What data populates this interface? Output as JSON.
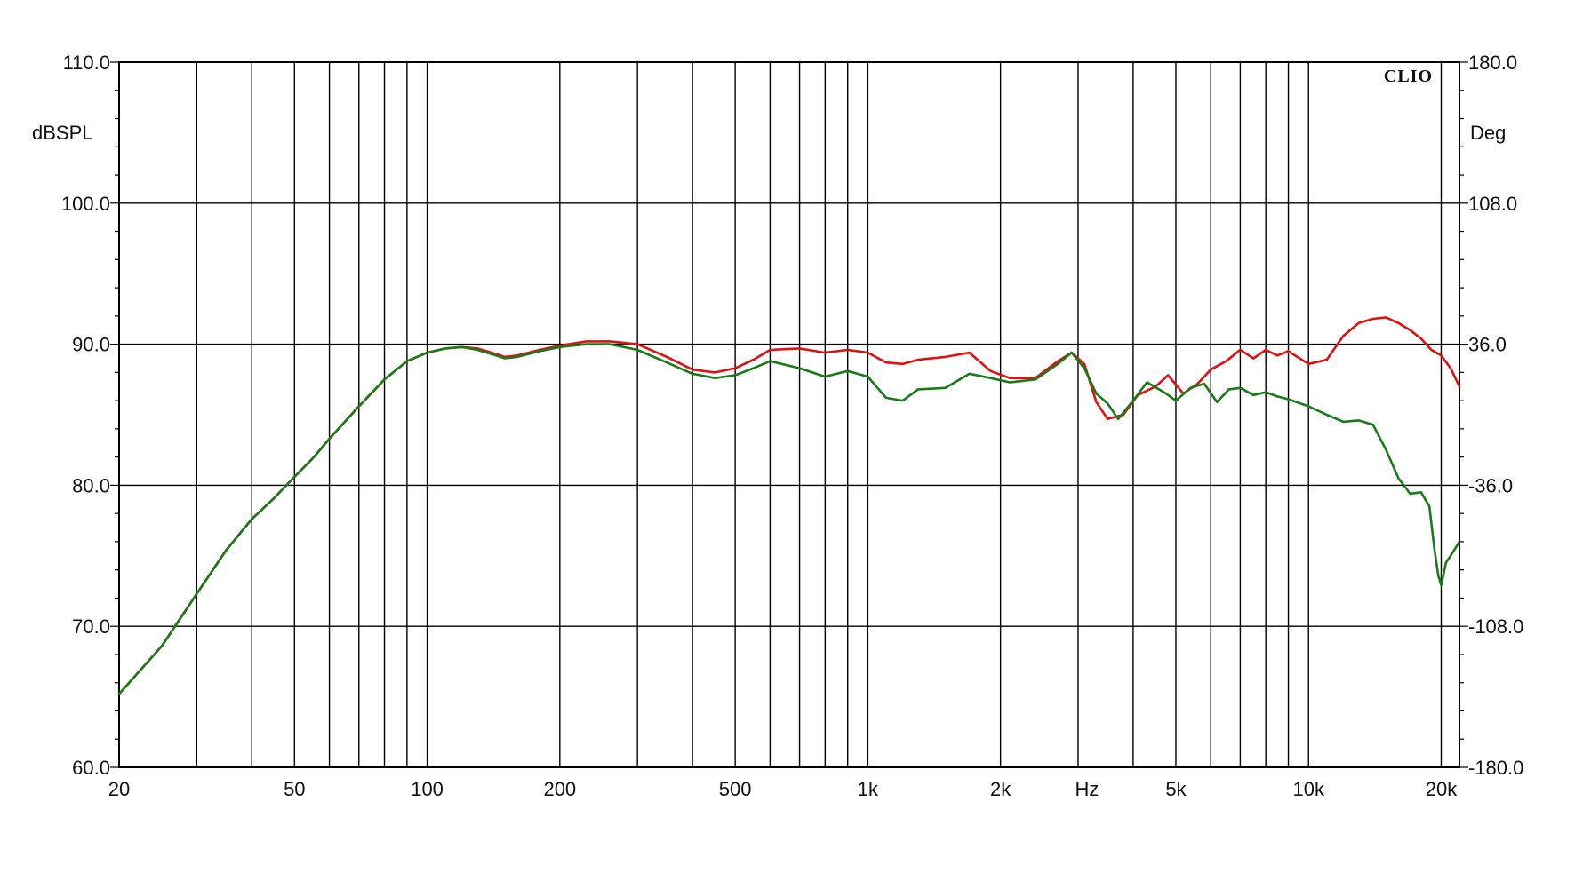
{
  "chart_data": {
    "type": "line",
    "brand": "CLIO",
    "x_scale": "log",
    "xlim": [
      20,
      22000
    ],
    "left_axis": {
      "unit_label": "dBSPL",
      "ylim": [
        60,
        110
      ],
      "ticks": [
        {
          "value": 110,
          "label": "110.0"
        },
        {
          "value": 100,
          "label": "100.0"
        },
        {
          "value": 90,
          "label": "90.0"
        },
        {
          "value": 80,
          "label": "80.0"
        },
        {
          "value": 70,
          "label": "70.0"
        },
        {
          "value": 60,
          "label": "60.0"
        }
      ]
    },
    "right_axis": {
      "unit_label": "Deg",
      "ylim": [
        -180,
        180
      ],
      "ticks": [
        {
          "value": 180,
          "label": "180.0"
        },
        {
          "value": 108,
          "label": "108.0"
        },
        {
          "value": 36,
          "label": "36.0"
        },
        {
          "value": -36,
          "label": "-36.0"
        },
        {
          "value": -108,
          "label": "-108.0"
        },
        {
          "value": -180,
          "label": "-180.0"
        }
      ]
    },
    "x_unit_label": "Hz",
    "x_tick_labels": [
      {
        "value": 20,
        "label": "20"
      },
      {
        "value": 50,
        "label": "50"
      },
      {
        "value": 100,
        "label": "100"
      },
      {
        "value": 200,
        "label": "200"
      },
      {
        "value": 500,
        "label": "500"
      },
      {
        "value": 1000,
        "label": "1k"
      },
      {
        "value": 2000,
        "label": "2k"
      },
      {
        "value": 5000,
        "label": "5k"
      },
      {
        "value": 10000,
        "label": "10k"
      },
      {
        "value": 20000,
        "label": "20k"
      }
    ],
    "x_gridlines": [
      20,
      30,
      40,
      50,
      60,
      70,
      80,
      90,
      100,
      200,
      300,
      400,
      500,
      600,
      700,
      800,
      900,
      1000,
      2000,
      3000,
      4000,
      5000,
      6000,
      7000,
      8000,
      9000,
      10000,
      20000
    ],
    "y_gridlines": [
      60,
      70,
      80,
      90,
      100,
      110
    ],
    "grid": true,
    "series": [
      {
        "color": "#dd1111",
        "points": [
          [
            20,
            65.2
          ],
          [
            25,
            68.6
          ],
          [
            30,
            72.3
          ],
          [
            35,
            75.4
          ],
          [
            40,
            77.6
          ],
          [
            45,
            79.1
          ],
          [
            50,
            80.6
          ],
          [
            55,
            81.9
          ],
          [
            60,
            83.3
          ],
          [
            70,
            85.6
          ],
          [
            80,
            87.5
          ],
          [
            90,
            88.8
          ],
          [
            100,
            89.4
          ],
          [
            110,
            89.7
          ],
          [
            120,
            89.8
          ],
          [
            130,
            89.7
          ],
          [
            140,
            89.4
          ],
          [
            150,
            89.1
          ],
          [
            160,
            89.2
          ],
          [
            180,
            89.6
          ],
          [
            200,
            89.9
          ],
          [
            230,
            90.2
          ],
          [
            260,
            90.2
          ],
          [
            300,
            90.0
          ],
          [
            350,
            89.1
          ],
          [
            400,
            88.2
          ],
          [
            450,
            88.0
          ],
          [
            500,
            88.3
          ],
          [
            550,
            88.9
          ],
          [
            600,
            89.6
          ],
          [
            700,
            89.7
          ],
          [
            800,
            89.4
          ],
          [
            900,
            89.6
          ],
          [
            1000,
            89.4
          ],
          [
            1100,
            88.7
          ],
          [
            1200,
            88.6
          ],
          [
            1300,
            88.9
          ],
          [
            1500,
            89.1
          ],
          [
            1700,
            89.4
          ],
          [
            1900,
            88.1
          ],
          [
            2100,
            87.6
          ],
          [
            2400,
            87.6
          ],
          [
            2700,
            88.8
          ],
          [
            2900,
            89.4
          ],
          [
            3100,
            88.6
          ],
          [
            3300,
            85.9
          ],
          [
            3500,
            84.7
          ],
          [
            3800,
            85.0
          ],
          [
            4100,
            86.4
          ],
          [
            4500,
            87.0
          ],
          [
            4800,
            87.8
          ],
          [
            5200,
            86.5
          ],
          [
            5600,
            87.2
          ],
          [
            6000,
            88.2
          ],
          [
            6500,
            88.8
          ],
          [
            7000,
            89.6
          ],
          [
            7500,
            89.0
          ],
          [
            8000,
            89.6
          ],
          [
            8500,
            89.2
          ],
          [
            9000,
            89.5
          ],
          [
            10000,
            88.6
          ],
          [
            11000,
            88.9
          ],
          [
            12000,
            90.6
          ],
          [
            13000,
            91.5
          ],
          [
            14000,
            91.8
          ],
          [
            15000,
            91.9
          ],
          [
            16000,
            91.5
          ],
          [
            17000,
            91.0
          ],
          [
            18000,
            90.4
          ],
          [
            19000,
            89.6
          ],
          [
            20000,
            89.2
          ],
          [
            21000,
            88.3
          ],
          [
            22000,
            87.0
          ]
        ]
      },
      {
        "color": "#1a7a1a",
        "points": [
          [
            20,
            65.2
          ],
          [
            25,
            68.6
          ],
          [
            30,
            72.3
          ],
          [
            35,
            75.4
          ],
          [
            40,
            77.6
          ],
          [
            45,
            79.1
          ],
          [
            50,
            80.6
          ],
          [
            55,
            81.9
          ],
          [
            60,
            83.3
          ],
          [
            70,
            85.6
          ],
          [
            80,
            87.5
          ],
          [
            90,
            88.8
          ],
          [
            100,
            89.4
          ],
          [
            110,
            89.7
          ],
          [
            120,
            89.8
          ],
          [
            130,
            89.6
          ],
          [
            140,
            89.3
          ],
          [
            150,
            89.0
          ],
          [
            160,
            89.1
          ],
          [
            180,
            89.5
          ],
          [
            200,
            89.8
          ],
          [
            230,
            90.0
          ],
          [
            260,
            90.0
          ],
          [
            300,
            89.6
          ],
          [
            350,
            88.7
          ],
          [
            400,
            87.9
          ],
          [
            450,
            87.6
          ],
          [
            500,
            87.8
          ],
          [
            550,
            88.3
          ],
          [
            600,
            88.8
          ],
          [
            700,
            88.3
          ],
          [
            800,
            87.7
          ],
          [
            900,
            88.1
          ],
          [
            1000,
            87.7
          ],
          [
            1100,
            86.2
          ],
          [
            1200,
            86.0
          ],
          [
            1300,
            86.8
          ],
          [
            1500,
            86.9
          ],
          [
            1700,
            87.9
          ],
          [
            1900,
            87.6
          ],
          [
            2100,
            87.3
          ],
          [
            2400,
            87.5
          ],
          [
            2700,
            88.6
          ],
          [
            2900,
            89.4
          ],
          [
            3100,
            88.3
          ],
          [
            3300,
            86.5
          ],
          [
            3500,
            85.8
          ],
          [
            3700,
            84.7
          ],
          [
            4000,
            86.0
          ],
          [
            4300,
            87.3
          ],
          [
            4700,
            86.6
          ],
          [
            5000,
            86.0
          ],
          [
            5400,
            86.9
          ],
          [
            5800,
            87.2
          ],
          [
            6200,
            85.9
          ],
          [
            6600,
            86.8
          ],
          [
            7000,
            86.9
          ],
          [
            7500,
            86.4
          ],
          [
            8000,
            86.6
          ],
          [
            8500,
            86.3
          ],
          [
            9000,
            86.1
          ],
          [
            10000,
            85.6
          ],
          [
            11000,
            85.0
          ],
          [
            12000,
            84.5
          ],
          [
            13000,
            84.6
          ],
          [
            14000,
            84.3
          ],
          [
            15000,
            82.5
          ],
          [
            16000,
            80.5
          ],
          [
            17000,
            79.4
          ],
          [
            18000,
            79.5
          ],
          [
            18800,
            78.5
          ],
          [
            19300,
            75.5
          ],
          [
            19700,
            73.6
          ],
          [
            20000,
            72.9
          ],
          [
            20500,
            74.5
          ],
          [
            21000,
            75.0
          ],
          [
            21500,
            75.5
          ],
          [
            22000,
            76.0
          ]
        ]
      }
    ]
  }
}
